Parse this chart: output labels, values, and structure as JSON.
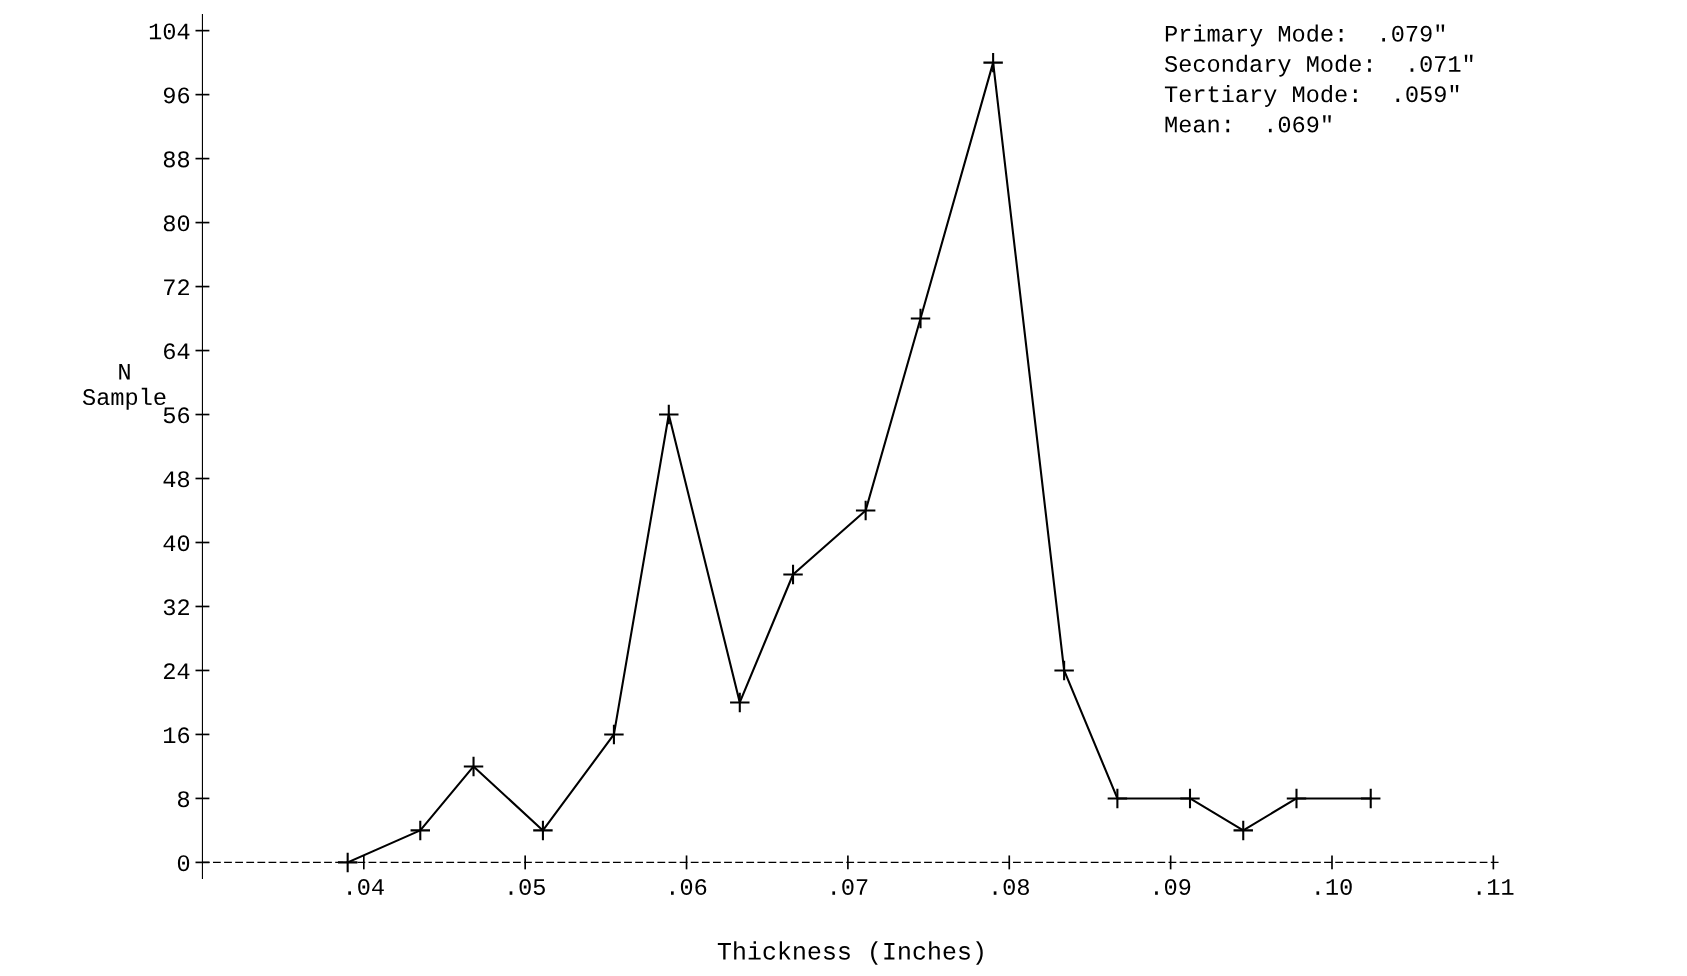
{
  "chart_data": {
    "type": "line",
    "xlabel": "Thickness (Inches)",
    "ylabel": "N\nSample",
    "x": [
      0.039,
      0.0435,
      0.0468,
      0.0511,
      0.0555,
      0.0589,
      0.0633,
      0.0666,
      0.0711,
      0.0745,
      0.079,
      0.0834,
      0.0867,
      0.0912,
      0.0945,
      0.0978,
      0.1024
    ],
    "series": [
      {
        "color": "#000000",
        "values": [
          0,
          4,
          12,
          4,
          16,
          56,
          20,
          36,
          44,
          68,
          100,
          24,
          8,
          8,
          4,
          8,
          8
        ]
      }
    ],
    "xlim": [
      0.03,
      0.1105
    ],
    "ylim": [
      -2,
      106
    ],
    "xticks": [
      {
        "value": 0.04,
        "label": ".04"
      },
      {
        "value": 0.05,
        "label": ".05"
      },
      {
        "value": 0.06,
        "label": ".06"
      },
      {
        "value": 0.07,
        "label": ".07"
      },
      {
        "value": 0.08,
        "label": ".08"
      },
      {
        "value": 0.09,
        "label": ".09"
      },
      {
        "value": 0.1,
        "label": ".10"
      },
      {
        "value": 0.11,
        "label": ".11"
      }
    ],
    "yticks": [
      0,
      8,
      16,
      24,
      32,
      40,
      48,
      56,
      64,
      72,
      80,
      88,
      96,
      104
    ],
    "annotations": [
      "Primary Mode:  .079\"",
      "Secondary Mode:  .071\"",
      "Tertiary Mode:  .059\"",
      "Mean:  .069\""
    ],
    "marker": "cross",
    "line_style": "solid",
    "legend": false
  }
}
